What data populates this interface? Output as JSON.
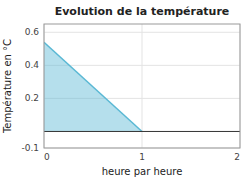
{
  "chart_data": {
    "type": "area",
    "title": "Evolution de la température",
    "x_label": "heure par heure",
    "y_label": "Température en °C",
    "x": [
      0,
      1
    ],
    "values": [
      0.54,
      0.0
    ],
    "color": "#5ab8d4",
    "xlim": [
      0,
      2
    ],
    "ylim": [
      -0.1,
      0.65
    ],
    "xticks": [
      0,
      1,
      2
    ],
    "yticks": [
      -0.1,
      0.2,
      0.4,
      0.6
    ],
    "grid": true
  }
}
